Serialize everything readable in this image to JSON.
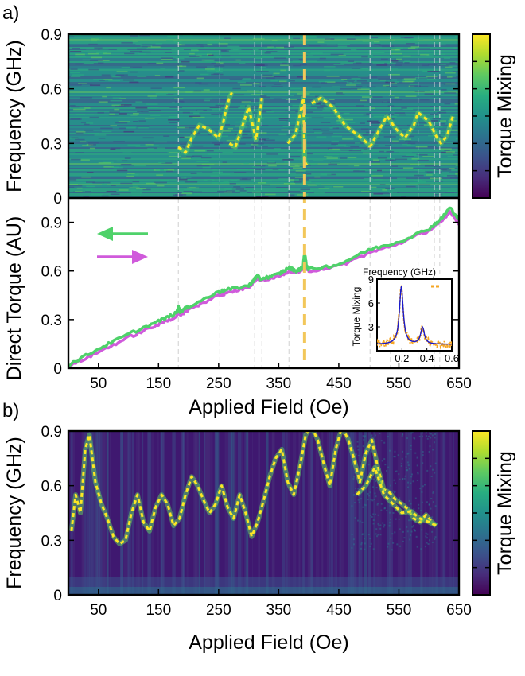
{
  "panel_labels": {
    "a": "a)",
    "b": "b)"
  },
  "colors": {
    "viridis": [
      "#440154",
      "#472d7b",
      "#3b528b",
      "#2c728e",
      "#21918c",
      "#28ae80",
      "#5ec962",
      "#addc30",
      "#fde725"
    ],
    "decrease_sweep": "#4fd26a",
    "increase_sweep": "#d05adb",
    "highlight_line": "#f2c75a",
    "guide_line": "#d0d0d0",
    "inset_raw": "#f5a623",
    "inset_fit": "#1a1acc"
  },
  "chart_data": [
    {
      "id": "a_top",
      "type": "heatmap",
      "ylabel": "Frequency (GHz)",
      "xlim": [
        0,
        650
      ],
      "ylim": [
        0,
        0.9
      ],
      "y_ticks": [
        "0",
        "0.3",
        "0.6",
        "0.9"
      ],
      "colorbar_label": "Torque Mixing",
      "guide_lines_field_oe": [
        183,
        252,
        310,
        322,
        367,
        393,
        502,
        536,
        582,
        609,
        618
      ],
      "highlight_field_oe": 393,
      "ridges": [
        {
          "x": [
            183,
            195,
            205,
            218,
            232,
            250,
            258,
            262,
            268,
            272
          ],
          "y": [
            0.28,
            0.25,
            0.33,
            0.4,
            0.38,
            0.33,
            0.42,
            0.48,
            0.55,
            0.58
          ]
        },
        {
          "x": [
            268,
            278,
            290,
            300,
            308,
            312,
            318,
            322
          ],
          "y": [
            0.3,
            0.28,
            0.4,
            0.5,
            0.38,
            0.32,
            0.45,
            0.55
          ]
        },
        {
          "x": [
            365,
            378,
            385,
            391,
            393,
            397
          ],
          "y": [
            0.3,
            0.35,
            0.45,
            0.55,
            0.2,
            0.18
          ]
        },
        {
          "x": [
            405,
            420,
            440,
            460,
            480,
            498,
            502
          ],
          "y": [
            0.52,
            0.55,
            0.5,
            0.4,
            0.35,
            0.3,
            0.28
          ]
        },
        {
          "x": [
            502,
            515,
            530,
            545,
            560,
            575,
            582,
            600,
            612,
            620,
            630,
            640
          ],
          "y": [
            0.28,
            0.36,
            0.45,
            0.38,
            0.33,
            0.4,
            0.47,
            0.42,
            0.34,
            0.3,
            0.34,
            0.45
          ]
        }
      ]
    },
    {
      "id": "a_bottom",
      "type": "line",
      "xlabel": "Applied Field (Oe)",
      "ylabel": "Direct Torque (AU)",
      "xlim": [
        0,
        650
      ],
      "ylim": [
        0,
        1.05
      ],
      "x_ticks": [
        "50",
        "150",
        "250",
        "350",
        "450",
        "550",
        "650"
      ],
      "y_ticks": [
        "0",
        "0.3",
        "0.6",
        "0.9"
      ],
      "legend": "top-left (arrows only: green left arrow, magenta right arrow)",
      "series": [
        {
          "color": "#4fd26a",
          "x": [
            0,
            50,
            100,
            150,
            180,
            183,
            186,
            200,
            250,
            260,
            300,
            310,
            314,
            320,
            350,
            367,
            380,
            390,
            393,
            396,
            400,
            450,
            500,
            550,
            600,
            620,
            635,
            650
          ],
          "y": [
            0.02,
            0.12,
            0.21,
            0.29,
            0.34,
            0.38,
            0.35,
            0.38,
            0.47,
            0.48,
            0.51,
            0.55,
            0.57,
            0.55,
            0.58,
            0.62,
            0.6,
            0.62,
            0.71,
            0.64,
            0.61,
            0.64,
            0.73,
            0.78,
            0.86,
            0.92,
            0.99,
            0.92
          ]
        },
        {
          "color": "#d05adb",
          "x": [
            0,
            50,
            100,
            150,
            180,
            183,
            186,
            200,
            250,
            260,
            300,
            310,
            314,
            320,
            350,
            367,
            380,
            390,
            393,
            396,
            400,
            450,
            500,
            550,
            600,
            620,
            635,
            650
          ],
          "y": [
            0.01,
            0.1,
            0.19,
            0.27,
            0.32,
            0.36,
            0.33,
            0.36,
            0.45,
            0.46,
            0.5,
            0.54,
            0.56,
            0.54,
            0.57,
            0.6,
            0.59,
            0.61,
            0.68,
            0.62,
            0.6,
            0.63,
            0.71,
            0.77,
            0.85,
            0.9,
            0.97,
            0.89
          ]
        }
      ]
    },
    {
      "id": "a_inset",
      "type": "line",
      "xlabel": "Frequency (GHz)",
      "ylabel": "Torque Mixing",
      "xlim": [
        0,
        0.6
      ],
      "ylim": [
        0,
        9
      ],
      "x_ticks": [
        "0.2",
        "0.4",
        "0.6"
      ],
      "y_ticks": [
        "3",
        "6",
        "9"
      ],
      "legend": "top-right",
      "peaks": [
        {
          "center_ghz": 0.195,
          "height": 8.1
        },
        {
          "center_ghz": 0.365,
          "height": 2.9
        }
      ],
      "baseline": 0.8
    },
    {
      "id": "b",
      "type": "heatmap",
      "xlabel": "Applied Field (Oe)",
      "ylabel": "Frequency (GHz)",
      "xlim": [
        0,
        650
      ],
      "ylim": [
        0,
        0.9
      ],
      "x_ticks": [
        "50",
        "150",
        "250",
        "350",
        "450",
        "550",
        "650"
      ],
      "y_ticks": [
        "0",
        "0.3",
        "0.6",
        "0.9"
      ],
      "colorbar_label": "Torque Mixing",
      "ridges": [
        {
          "x": [
            5,
            12,
            20,
            28,
            35,
            45,
            55,
            65,
            75,
            85,
            95,
            105,
            115,
            125,
            135,
            145,
            155,
            165,
            175,
            185,
            195,
            205,
            215,
            225,
            235,
            245,
            255,
            265,
            275,
            285,
            295,
            305,
            315,
            325,
            335,
            345,
            355,
            365,
            375,
            385,
            395,
            405,
            415,
            425,
            435,
            445,
            455,
            465,
            475,
            485,
            495,
            505,
            515,
            525,
            535,
            545,
            555,
            565,
            575,
            585,
            595,
            605,
            612
          ],
          "y": [
            0.35,
            0.55,
            0.45,
            0.8,
            0.88,
            0.62,
            0.5,
            0.42,
            0.32,
            0.28,
            0.3,
            0.45,
            0.55,
            0.4,
            0.35,
            0.48,
            0.55,
            0.5,
            0.38,
            0.42,
            0.55,
            0.65,
            0.6,
            0.52,
            0.45,
            0.5,
            0.6,
            0.48,
            0.42,
            0.55,
            0.45,
            0.32,
            0.4,
            0.52,
            0.65,
            0.75,
            0.8,
            0.62,
            0.55,
            0.7,
            0.88,
            0.92,
            0.85,
            0.72,
            0.6,
            0.8,
            0.92,
            0.86,
            0.75,
            0.62,
            0.78,
            0.85,
            0.7,
            0.58,
            0.56,
            0.52,
            0.5,
            0.47,
            0.42,
            0.4,
            0.44,
            0.4,
            0.38
          ]
        },
        {
          "x": [
            480,
            495,
            510,
            525,
            540,
            555,
            570,
            585,
            600,
            612
          ],
          "y": [
            0.55,
            0.6,
            0.7,
            0.55,
            0.5,
            0.45,
            0.46,
            0.42,
            0.4,
            0.38
          ]
        }
      ]
    }
  ]
}
